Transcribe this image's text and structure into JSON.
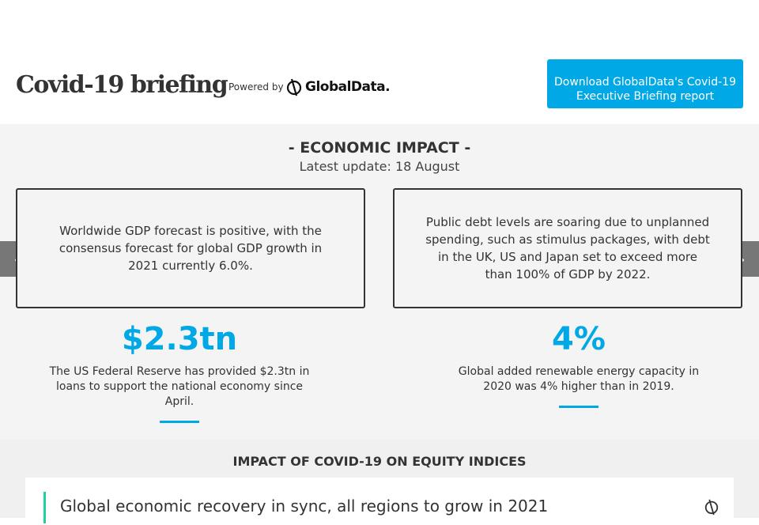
{
  "header": {
    "title": "Covid-19 briefing",
    "powered_by": "Powered by",
    "brand": "GlobalData.",
    "download_label": "Download GlobalData's Covid-19 Executive Briefing report"
  },
  "economic": {
    "heading": "- ECONOMIC IMPACT -",
    "update": "Latest update: 18 August",
    "cards": [
      {
        "text": "Worldwide GDP forecast is positive, with the consensus forecast for global GDP growth in 2021 currently 6.0%."
      },
      {
        "text": "Public debt levels are soaring due to unplanned spending, such as stimulus packages, with debt in the UK, US and Japan set to exceed more than 100% of GDP by 2022."
      }
    ],
    "stats": [
      {
        "value": "$2.3tn",
        "text": "The US Federal Reserve has provided $2.3tn in loans to support the national economy since April."
      },
      {
        "value": "4%",
        "text": "Global added renewable energy capacity in 2020 was 4% higher than in 2019."
      }
    ],
    "prev_icon": "chevron-left-icon",
    "next_icon": "chevron-right-icon"
  },
  "equity": {
    "heading": "IMPACT OF COVID-19 ON EQUITY INDICES",
    "panel_title": "Global economic recovery in sync, all regions to grow in 2021"
  },
  "colors": {
    "accent": "#00a8e6",
    "panel_line": "#1fd1a0"
  }
}
